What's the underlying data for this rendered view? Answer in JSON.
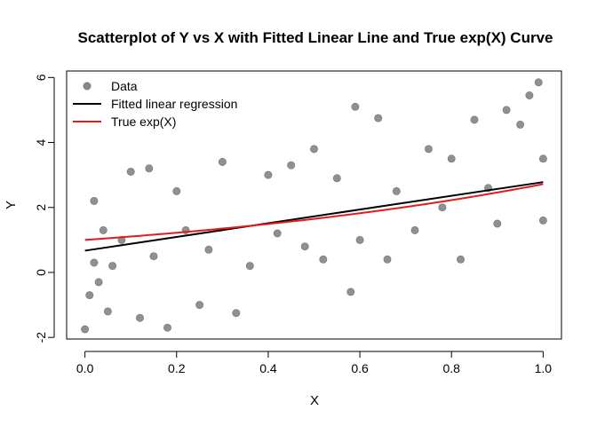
{
  "chart_data": {
    "type": "scatter",
    "title": "Scatterplot of Y vs X with Fitted Linear Line and True exp(X) Curve",
    "xlabel": "X",
    "ylabel": "Y",
    "xlim": [
      -0.04,
      1.04
    ],
    "ylim": [
      -2.05,
      6.2
    ],
    "xticks": [
      0.0,
      0.2,
      0.4,
      0.6,
      0.8,
      1.0
    ],
    "xtick_labels": [
      "0.0",
      "0.2",
      "0.4",
      "0.6",
      "0.8",
      "1.0"
    ],
    "yticks": [
      -2,
      0,
      2,
      4,
      6
    ],
    "ytick_labels": [
      "-2",
      "0",
      "2",
      "4",
      "6"
    ],
    "grid": false,
    "legend": {
      "position": "top-left",
      "entries": [
        {
          "label": "Data",
          "kind": "point",
          "color": "#555555"
        },
        {
          "label": "Fitted linear regression",
          "kind": "line",
          "color": "#000000"
        },
        {
          "label": "True exp(X)",
          "kind": "line",
          "color": "#e41a1c"
        }
      ]
    },
    "series": [
      {
        "name": "Data",
        "kind": "scatter",
        "color": "#555555",
        "points": [
          [
            0.0,
            -1.75
          ],
          [
            0.01,
            -0.7
          ],
          [
            0.02,
            2.2
          ],
          [
            0.02,
            0.3
          ],
          [
            0.03,
            -0.3
          ],
          [
            0.05,
            -1.2
          ],
          [
            0.04,
            1.3
          ],
          [
            0.06,
            0.2
          ],
          [
            0.08,
            1.0
          ],
          [
            0.1,
            3.1
          ],
          [
            0.12,
            -1.4
          ],
          [
            0.14,
            3.2
          ],
          [
            0.15,
            0.5
          ],
          [
            0.18,
            -1.7
          ],
          [
            0.2,
            2.5
          ],
          [
            0.22,
            1.3
          ],
          [
            0.25,
            -1.0
          ],
          [
            0.27,
            0.7
          ],
          [
            0.3,
            3.4
          ],
          [
            0.33,
            -1.25
          ],
          [
            0.36,
            0.2
          ],
          [
            0.4,
            3.0
          ],
          [
            0.42,
            1.2
          ],
          [
            0.45,
            3.3
          ],
          [
            0.48,
            0.8
          ],
          [
            0.5,
            3.8
          ],
          [
            0.52,
            0.4
          ],
          [
            0.55,
            2.9
          ],
          [
            0.58,
            -0.6
          ],
          [
            0.59,
            5.1
          ],
          [
            0.6,
            1.0
          ],
          [
            0.64,
            4.75
          ],
          [
            0.66,
            0.4
          ],
          [
            0.68,
            2.5
          ],
          [
            0.72,
            1.3
          ],
          [
            0.75,
            3.8
          ],
          [
            0.78,
            2.0
          ],
          [
            0.8,
            3.5
          ],
          [
            0.82,
            0.4
          ],
          [
            0.85,
            4.7
          ],
          [
            0.88,
            2.6
          ],
          [
            0.9,
            1.5
          ],
          [
            0.92,
            5.0
          ],
          [
            0.95,
            4.55
          ],
          [
            0.97,
            5.45
          ],
          [
            0.99,
            5.85
          ],
          [
            1.0,
            3.5
          ],
          [
            1.0,
            1.6
          ]
        ]
      },
      {
        "name": "Fitted linear regression",
        "kind": "line",
        "color": "#000000",
        "points": [
          [
            0.0,
            0.67
          ],
          [
            1.0,
            2.78
          ]
        ]
      },
      {
        "name": "True exp(X)",
        "kind": "curve",
        "color": "#e41a1c",
        "function": "exp(x)",
        "xrange": [
          0.0,
          1.0
        ]
      }
    ]
  }
}
